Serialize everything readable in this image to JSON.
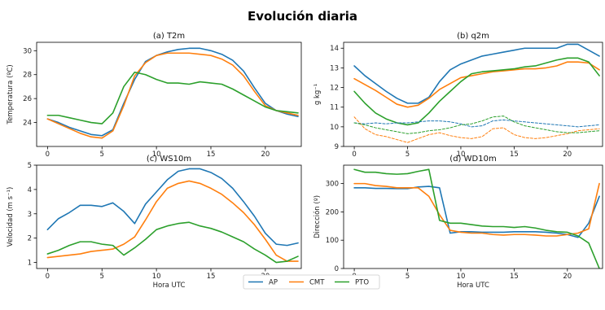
{
  "suptitle": "Evolución diaria",
  "legend": {
    "placement": "bottom-center",
    "entries": [
      {
        "name": "AP",
        "color": "#1f77b4"
      },
      {
        "name": "CMT",
        "color": "#ff7f0e"
      },
      {
        "name": "PTO",
        "color": "#2ca02c"
      }
    ]
  },
  "chart_data": [
    {
      "id": "t2m",
      "type": "line",
      "title": "(a) T2m",
      "xlabel": "",
      "ylabel": "Temperatura (ºC)",
      "xlim": [
        -1,
        23.3
      ],
      "ylim": [
        22.0,
        30.7
      ],
      "xticks": [
        0,
        5,
        10,
        15,
        20
      ],
      "yticks": [
        24,
        26,
        28,
        30
      ],
      "x": [
        0,
        1,
        2,
        3,
        4,
        5,
        6,
        7,
        8,
        9,
        10,
        11,
        12,
        13,
        14,
        15,
        16,
        17,
        18,
        19,
        20,
        21,
        22,
        23
      ],
      "series": [
        {
          "name": "AP",
          "color": "#1f77b4",
          "values": [
            24.3,
            24.0,
            23.6,
            23.3,
            23.0,
            22.9,
            23.4,
            25.6,
            27.6,
            29.1,
            29.6,
            29.9,
            30.1,
            30.2,
            30.2,
            30.0,
            29.7,
            29.2,
            28.3,
            26.9,
            25.6,
            25.0,
            24.7,
            24.5
          ]
        },
        {
          "name": "CMT",
          "color": "#ff7f0e",
          "values": [
            24.3,
            23.9,
            23.5,
            23.1,
            22.8,
            22.7,
            23.3,
            25.4,
            27.9,
            29.0,
            29.6,
            29.8,
            29.8,
            29.8,
            29.7,
            29.6,
            29.3,
            28.8,
            27.9,
            26.6,
            25.4,
            25.0,
            24.8,
            24.6
          ]
        },
        {
          "name": "PTO",
          "color": "#2ca02c",
          "values": [
            24.6,
            24.6,
            24.4,
            24.2,
            24.0,
            23.9,
            24.8,
            27.0,
            28.2,
            28.0,
            27.6,
            27.3,
            27.3,
            27.2,
            27.4,
            27.3,
            27.2,
            26.8,
            26.3,
            25.8,
            25.3,
            25.0,
            24.9,
            24.8
          ]
        }
      ]
    },
    {
      "id": "q2m",
      "type": "line",
      "title": "(b) q2m",
      "xlabel": "",
      "ylabel": "g kg⁻¹",
      "xlim": [
        -1,
        23.3
      ],
      "ylim": [
        9.0,
        14.3
      ],
      "xticks": [
        0,
        5,
        10,
        15,
        20
      ],
      "yticks": [
        9,
        10,
        11,
        12,
        13,
        14
      ],
      "x": [
        0,
        1,
        2,
        3,
        4,
        5,
        6,
        7,
        8,
        9,
        10,
        11,
        12,
        13,
        14,
        15,
        16,
        17,
        18,
        19,
        20,
        21,
        22,
        23
      ],
      "series": [
        {
          "name": "AP",
          "color": "#1f77b4",
          "values": [
            13.1,
            12.6,
            12.2,
            11.8,
            11.45,
            11.2,
            11.2,
            11.5,
            12.3,
            12.9,
            13.2,
            13.4,
            13.6,
            13.7,
            13.8,
            13.9,
            14.0,
            14.0,
            14.0,
            14.0,
            14.2,
            14.2,
            13.9,
            13.6
          ]
        },
        {
          "name": "CMT",
          "color": "#ff7f0e",
          "values": [
            12.45,
            12.15,
            11.85,
            11.5,
            11.15,
            11.0,
            11.1,
            11.45,
            11.9,
            12.2,
            12.5,
            12.6,
            12.7,
            12.8,
            12.85,
            12.9,
            12.95,
            12.95,
            13.0,
            13.1,
            13.3,
            13.3,
            13.25,
            12.9
          ]
        },
        {
          "name": "PTO",
          "color": "#2ca02c",
          "values": [
            11.8,
            11.2,
            10.7,
            10.4,
            10.2,
            10.1,
            10.2,
            10.7,
            11.3,
            11.8,
            12.3,
            12.7,
            12.8,
            12.85,
            12.9,
            12.95,
            13.05,
            13.1,
            13.25,
            13.4,
            13.5,
            13.5,
            13.3,
            12.6
          ]
        },
        {
          "name": "",
          "color": "#1f77b4",
          "dashed": true,
          "values": [
            10.2,
            10.15,
            10.2,
            10.15,
            10.2,
            10.2,
            10.25,
            10.3,
            10.3,
            10.25,
            10.15,
            10.0,
            10.05,
            10.3,
            10.35,
            10.3,
            10.25,
            10.2,
            10.15,
            10.1,
            10.05,
            10.0,
            10.05,
            10.1
          ]
        },
        {
          "name": "",
          "color": "#ff7f0e",
          "dashed": true,
          "values": [
            10.5,
            9.9,
            9.6,
            9.5,
            9.35,
            9.2,
            9.4,
            9.6,
            9.7,
            9.55,
            9.45,
            9.4,
            9.5,
            9.9,
            9.95,
            9.6,
            9.45,
            9.4,
            9.45,
            9.55,
            9.65,
            9.8,
            9.85,
            9.9
          ]
        },
        {
          "name": "",
          "color": "#2ca02c",
          "dashed": true,
          "values": [
            10.2,
            10.1,
            9.95,
            9.85,
            9.75,
            9.65,
            9.7,
            9.8,
            9.85,
            9.95,
            10.1,
            10.15,
            10.3,
            10.5,
            10.55,
            10.25,
            10.05,
            9.95,
            9.85,
            9.75,
            9.7,
            9.7,
            9.75,
            9.8
          ]
        }
      ]
    },
    {
      "id": "ws10m",
      "type": "line",
      "title": "(c) WS10m",
      "xlabel": "Hora UTC",
      "ylabel": "Velocidad (m s⁻¹)",
      "xlim": [
        -1,
        23.3
      ],
      "ylim": [
        0.75,
        5.0
      ],
      "xticks": [
        0,
        5,
        10,
        15,
        20
      ],
      "yticks": [
        1,
        2,
        3,
        4,
        5
      ],
      "x": [
        0,
        1,
        2,
        3,
        4,
        5,
        6,
        7,
        8,
        9,
        10,
        11,
        12,
        13,
        14,
        15,
        16,
        17,
        18,
        19,
        20,
        21,
        22,
        23
      ],
      "series": [
        {
          "name": "AP",
          "color": "#1f77b4",
          "values": [
            2.35,
            2.8,
            3.05,
            3.35,
            3.35,
            3.3,
            3.45,
            3.1,
            2.6,
            3.4,
            3.9,
            4.4,
            4.75,
            4.85,
            4.85,
            4.7,
            4.45,
            4.05,
            3.5,
            2.9,
            2.2,
            1.75,
            1.7,
            1.8
          ]
        },
        {
          "name": "CMT",
          "color": "#ff7f0e",
          "values": [
            1.2,
            1.25,
            1.3,
            1.35,
            1.45,
            1.5,
            1.55,
            1.75,
            2.05,
            2.75,
            3.5,
            4.05,
            4.25,
            4.35,
            4.25,
            4.05,
            3.8,
            3.45,
            3.05,
            2.55,
            1.95,
            1.3,
            1.05,
            1.05
          ]
        },
        {
          "name": "PTO",
          "color": "#2ca02c",
          "values": [
            1.35,
            1.5,
            1.7,
            1.85,
            1.85,
            1.75,
            1.7,
            1.3,
            1.6,
            1.95,
            2.35,
            2.5,
            2.6,
            2.65,
            2.5,
            2.4,
            2.25,
            2.05,
            1.85,
            1.55,
            1.3,
            1.0,
            1.05,
            1.25
          ]
        }
      ]
    },
    {
      "id": "wd10m",
      "type": "line",
      "title": "(d) WD10m",
      "xlabel": "Hora UTC",
      "ylabel": "Dirección (º)",
      "xlim": [
        -1,
        23.3
      ],
      "ylim": [
        0,
        365
      ],
      "xticks": [
        0,
        5,
        10,
        15,
        20
      ],
      "yticks": [
        0,
        100,
        200,
        300
      ],
      "x": [
        0,
        1,
        2,
        3,
        4,
        5,
        6,
        7,
        8,
        9,
        10,
        11,
        12,
        13,
        14,
        15,
        16,
        17,
        18,
        19,
        20,
        21,
        22,
        23
      ],
      "series": [
        {
          "name": "AP",
          "color": "#1f77b4",
          "values": [
            285,
            285,
            283,
            283,
            282,
            282,
            288,
            290,
            285,
            125,
            130,
            130,
            128,
            128,
            128,
            130,
            130,
            130,
            128,
            125,
            120,
            110,
            160,
            255
          ]
        },
        {
          "name": "CMT",
          "color": "#ff7f0e",
          "values": [
            300,
            300,
            293,
            290,
            285,
            285,
            285,
            255,
            190,
            135,
            128,
            125,
            125,
            120,
            118,
            120,
            120,
            118,
            115,
            115,
            120,
            125,
            140,
            300
          ]
        },
        {
          "name": "PTO",
          "color": "#2ca02c",
          "values": [
            350,
            340,
            340,
            335,
            333,
            335,
            343,
            350,
            170,
            160,
            160,
            155,
            150,
            148,
            148,
            145,
            148,
            143,
            135,
            130,
            128,
            115,
            90,
            0
          ]
        }
      ]
    }
  ]
}
